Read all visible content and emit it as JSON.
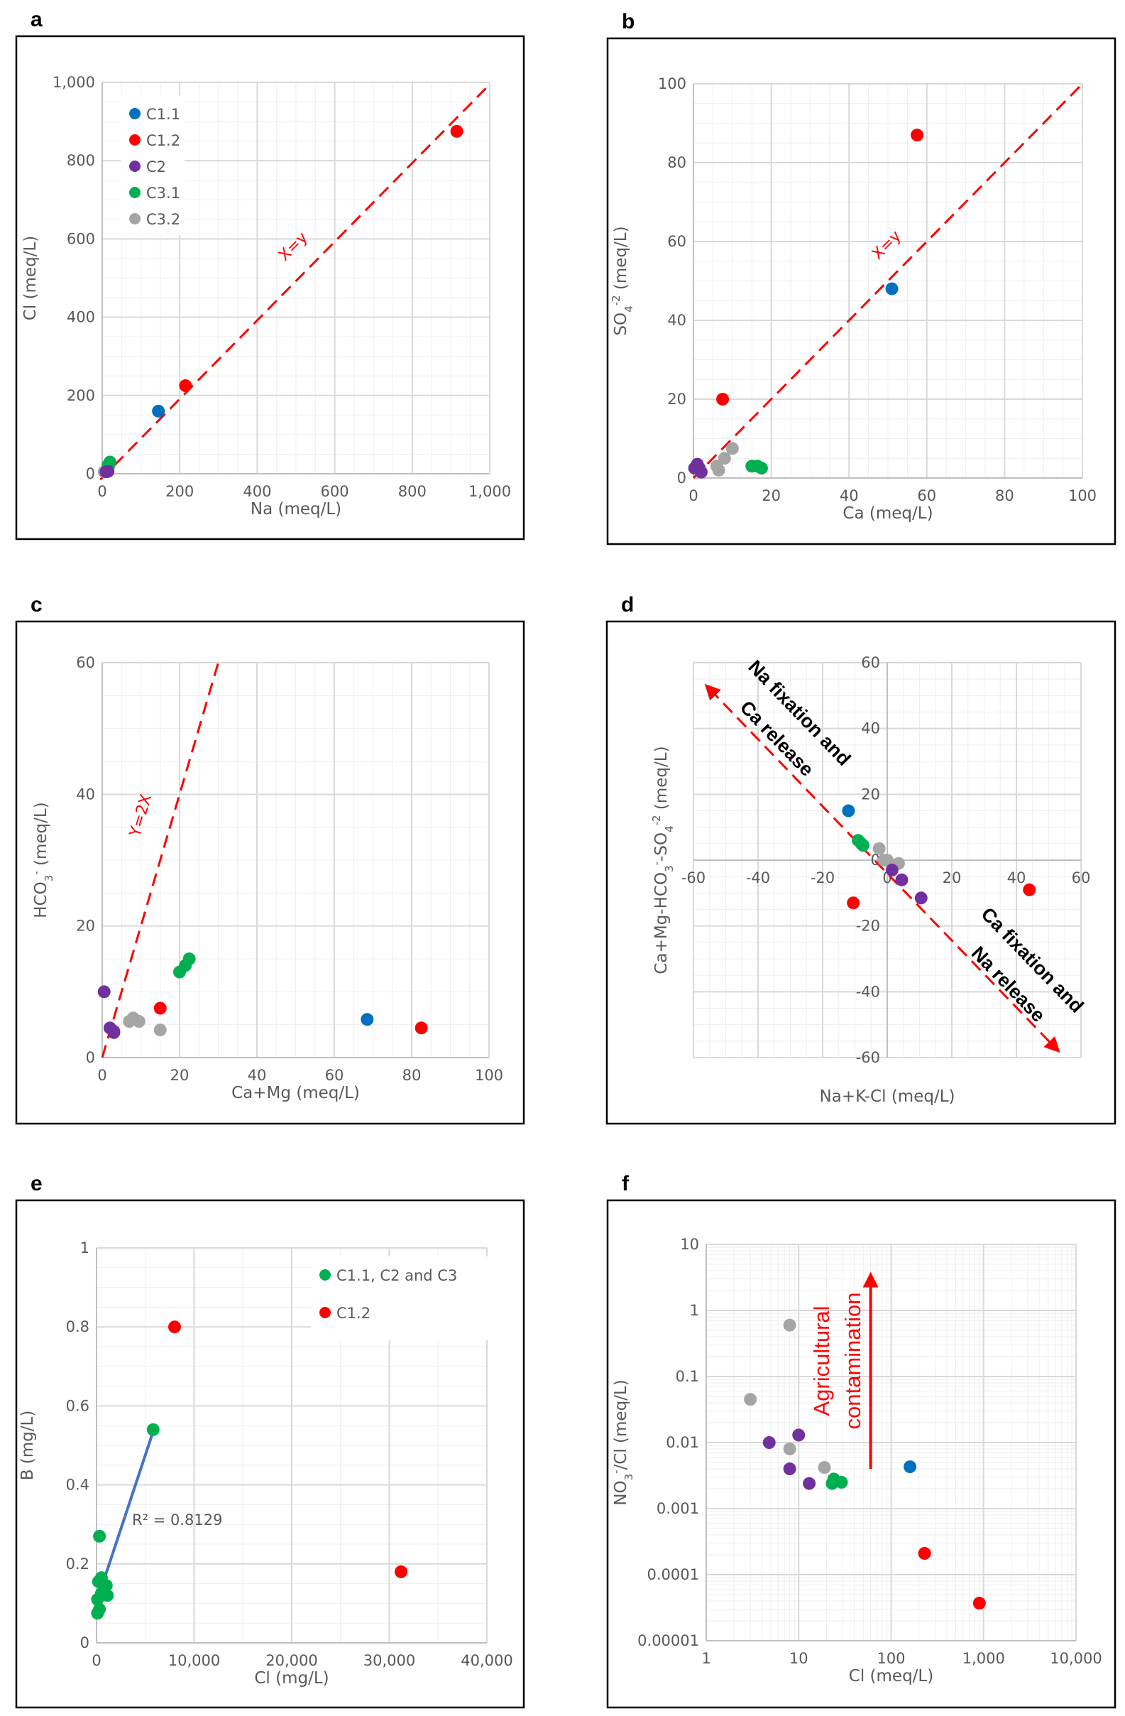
{
  "colors": {
    "C1.1": "#0070C0",
    "C1.2": "#FF0000",
    "C2": "#7030A0",
    "C3.1": "#00B050",
    "C3.2": "#A5A5A5",
    "C1.1, C2 and C3": "#00B050",
    "trend": "#4472C4"
  },
  "chart_data": [
    {
      "label": "a",
      "type": "scatter",
      "xlabel": [
        {
          "t": "Na (meq/L)"
        }
      ],
      "ylabel": [
        {
          "t": "Cl (meq/L)"
        }
      ],
      "xlim": [
        0,
        1000
      ],
      "ylim": [
        0,
        1000
      ],
      "xticks": [
        0,
        200,
        400,
        600,
        800,
        1000
      ],
      "xtick_labels": [
        "0",
        "200",
        "400",
        "600",
        "800",
        "1,000"
      ],
      "yticks": [
        0,
        200,
        400,
        600,
        800,
        1000
      ],
      "ytick_labels": [
        "0",
        "200",
        "400",
        "600",
        "800",
        "1,000"
      ],
      "grid": true,
      "legend": [
        "C1.1",
        "C1.2",
        "C2",
        "C3.1",
        "C3.2"
      ],
      "legend_position": "top-left",
      "series": [
        {
          "name": "C3.2",
          "points": [
            [
              5,
              5
            ],
            [
              18,
              20
            ]
          ]
        },
        {
          "name": "C3.1",
          "points": [
            [
              20,
              30
            ],
            [
              15,
              22
            ]
          ]
        },
        {
          "name": "C2",
          "points": [
            [
              10,
              5
            ],
            [
              15,
              6
            ]
          ]
        },
        {
          "name": "C1.1",
          "points": [
            [
              145,
              160
            ]
          ]
        },
        {
          "name": "C1.2",
          "points": [
            [
              215,
              225
            ],
            [
              915,
              875
            ]
          ]
        }
      ],
      "lines": [
        {
          "label": "X=y",
          "from": [
            -5,
            -15
          ],
          "to": [
            990,
            985
          ],
          "style": "dashed",
          "color": "#FF0000"
        }
      ]
    },
    {
      "label": "b",
      "type": "scatter",
      "xlabel": [
        {
          "t": "Ca (meq/L)"
        }
      ],
      "ylabel": [
        {
          "t": "SO"
        },
        {
          "t": "4",
          "sub": true
        },
        {
          "t": "-2",
          "sup": true
        },
        {
          "t": " (meq/L)"
        }
      ],
      "xlim": [
        0,
        100
      ],
      "ylim": [
        0,
        100
      ],
      "xticks": [
        0,
        20,
        40,
        60,
        80,
        100
      ],
      "xtick_labels": [
        "0",
        "20",
        "40",
        "60",
        "80",
        "100"
      ],
      "yticks": [
        0,
        20,
        40,
        60,
        80,
        100
      ],
      "ytick_labels": [
        "0",
        "20",
        "40",
        "60",
        "80",
        "100"
      ],
      "grid": true,
      "series": [
        {
          "name": "C3.2",
          "points": [
            [
              6,
              3
            ],
            [
              6.5,
              2
            ],
            [
              8,
              5
            ],
            [
              10,
              7.5
            ]
          ]
        },
        {
          "name": "C3.1",
          "points": [
            [
              15,
              3
            ],
            [
              16.5,
              3
            ],
            [
              17.5,
              2.5
            ]
          ]
        },
        {
          "name": "C2",
          "points": [
            [
              0.3,
              2.5
            ],
            [
              1,
              3.5
            ],
            [
              2,
              1.5
            ],
            [
              1.5,
              2.5
            ]
          ]
        },
        {
          "name": "C1.1",
          "points": [
            [
              51,
              48
            ]
          ]
        },
        {
          "name": "C1.2",
          "points": [
            [
              7.5,
              20
            ],
            [
              57.5,
              87
            ]
          ]
        }
      ],
      "lines": [
        {
          "label": "X=y",
          "from": [
            0,
            0
          ],
          "to": [
            100,
            100
          ],
          "style": "dashed",
          "color": "#FF0000"
        }
      ]
    },
    {
      "label": "c",
      "type": "scatter",
      "xlabel": [
        {
          "t": "Ca+Mg (meq/L)"
        }
      ],
      "ylabel": [
        {
          "t": "HCO"
        },
        {
          "t": "3",
          "sub": true
        },
        {
          "t": "-",
          "sup": true
        },
        {
          "t": "  (meq/L)"
        }
      ],
      "xlim": [
        0,
        100
      ],
      "ylim": [
        0,
        60
      ],
      "xticks": [
        0,
        20,
        40,
        60,
        80,
        100
      ],
      "xtick_labels": [
        "0",
        "20",
        "40",
        "60",
        "80",
        "100"
      ],
      "yticks": [
        0,
        20,
        40,
        60
      ],
      "ytick_labels": [
        "0",
        "20",
        "40",
        "60"
      ],
      "grid": true,
      "series": [
        {
          "name": "C2",
          "points": [
            [
              0.5,
              10
            ],
            [
              2,
              4.5
            ],
            [
              3,
              4
            ],
            [
              3,
              3.8
            ]
          ]
        },
        {
          "name": "C3.2",
          "points": [
            [
              7,
              5.5
            ],
            [
              8,
              6
            ],
            [
              9.5,
              5.5
            ],
            [
              15,
              4.2
            ]
          ]
        },
        {
          "name": "C3.1",
          "points": [
            [
              20,
              13
            ],
            [
              21.5,
              14
            ],
            [
              22.5,
              15
            ]
          ]
        },
        {
          "name": "C1.2",
          "points": [
            [
              15,
              7.5
            ],
            [
              82.5,
              4.5
            ]
          ]
        },
        {
          "name": "C1.1",
          "points": [
            [
              68.5,
              5.8
            ]
          ]
        }
      ],
      "lines": [
        {
          "label": "Y=2X",
          "from": [
            0,
            0
          ],
          "to": [
            30,
            60
          ],
          "style": "dashed",
          "color": "#FF0000"
        }
      ]
    },
    {
      "label": "d",
      "type": "scatter",
      "xlabel": [
        {
          "t": "Na+K-Cl (meq/L)"
        }
      ],
      "ylabel": [
        {
          "t": "Ca+Mg-HCO"
        },
        {
          "t": "3",
          "sub": true
        },
        {
          "t": "-",
          "sup": true
        },
        {
          "t": "-SO"
        },
        {
          "t": "4",
          "sub": true
        },
        {
          "t": "-2",
          "sup": true
        },
        {
          "t": " (meq/L)"
        }
      ],
      "xlim": [
        -60,
        60
      ],
      "ylim": [
        -60,
        60
      ],
      "xticks": [
        -60,
        -40,
        -20,
        0,
        20,
        40,
        60
      ],
      "xtick_labels": [
        "-60",
        "-40",
        "-20",
        "0",
        "20",
        "40",
        "60"
      ],
      "yticks": [
        -60,
        -40,
        -20,
        0,
        20,
        40,
        60
      ],
      "ytick_labels": [
        "-60",
        "-40",
        "-20",
        "0",
        "20",
        "40",
        "60"
      ],
      "grid": true,
      "axes_cross_at_zero": true,
      "series": [
        {
          "name": "C3.2",
          "points": [
            [
              -2.5,
              3.5
            ],
            [
              -1,
              0
            ],
            [
              0,
              0
            ],
            [
              3.5,
              -1
            ]
          ]
        },
        {
          "name": "C3.1",
          "points": [
            [
              -9,
              6
            ],
            [
              -8,
              5
            ],
            [
              -7.5,
              4.5
            ]
          ]
        },
        {
          "name": "C2",
          "points": [
            [
              1.5,
              -3
            ],
            [
              4.5,
              -6
            ],
            [
              10.5,
              -11.5
            ]
          ]
        },
        {
          "name": "C1.1",
          "points": [
            [
              -12,
              15
            ]
          ]
        },
        {
          "name": "C1.2",
          "points": [
            [
              -10.5,
              -13
            ],
            [
              44,
              -9
            ]
          ]
        }
      ],
      "lines": [
        {
          "label": "",
          "from": [
            -55,
            52
          ],
          "to": [
            52,
            -57
          ],
          "style": "dashed",
          "color": "#FF0000",
          "arrows": "both"
        }
      ],
      "annotations": [
        "Na fixation and",
        "Ca release",
        "Ca fixation and",
        "Na release"
      ]
    },
    {
      "label": "e",
      "type": "scatter",
      "xlabel": [
        {
          "t": "Cl (mg/L)"
        }
      ],
      "ylabel": [
        {
          "t": "B (mg/L)"
        }
      ],
      "xlim": [
        0,
        40000
      ],
      "ylim": [
        0,
        1
      ],
      "xticks": [
        0,
        10000,
        20000,
        30000,
        40000
      ],
      "xtick_labels": [
        "0",
        "10,000",
        "20,000",
        "30,000",
        "40,000"
      ],
      "yticks": [
        0,
        0.2,
        0.4,
        0.6,
        0.8,
        1
      ],
      "ytick_labels": [
        "0",
        "0.2",
        "0.4",
        "0.6",
        "0.8",
        "1"
      ],
      "grid": true,
      "legend": [
        "C1.1, C2 and C3",
        "C1.2"
      ],
      "legend_position": "top-right",
      "series": [
        {
          "name": "C1.1, C2 and C3",
          "points": [
            [
              5800,
              0.54
            ],
            [
              300,
              0.27
            ],
            [
              200,
              0.155
            ],
            [
              500,
              0.165
            ],
            [
              1000,
              0.145
            ],
            [
              1100,
              0.12
            ],
            [
              100,
              0.11
            ],
            [
              500,
              0.125
            ],
            [
              100,
              0.075
            ],
            [
              300,
              0.085
            ]
          ]
        },
        {
          "name": "C1.2",
          "points": [
            [
              8000,
              0.8
            ],
            [
              31200,
              0.18
            ]
          ]
        }
      ],
      "lines": [
        {
          "label": "",
          "from": [
            100,
            0.11
          ],
          "to": [
            5800,
            0.535
          ],
          "style": "solid",
          "color": "#4472C4"
        }
      ],
      "trendline_r2": "R² = 0.8129"
    },
    {
      "label": "f",
      "type": "scatter",
      "xscale": "log",
      "yscale": "log",
      "xlabel": [
        {
          "t": "Cl (meq/L)"
        }
      ],
      "ylabel": [
        {
          "t": "NO"
        },
        {
          "t": "3",
          "sub": true
        },
        {
          "t": "-",
          "sup": true
        },
        {
          "t": "/Cl (meq/L)"
        }
      ],
      "xlim": [
        1,
        10000
      ],
      "ylim": [
        1e-05,
        10
      ],
      "xticks": [
        1,
        10,
        100,
        1000,
        10000
      ],
      "xtick_labels": [
        "1",
        "10",
        "100",
        "1,000",
        "10,000"
      ],
      "yticks": [
        1e-05,
        0.0001,
        0.001,
        0.01,
        0.1,
        1,
        10
      ],
      "ytick_labels": [
        "0.00001",
        "0.0001",
        "0.001",
        "0.01",
        "0.1",
        "1",
        "10"
      ],
      "grid": true,
      "series": [
        {
          "name": "C3.2",
          "points": [
            [
              8,
              0.6
            ],
            [
              3,
              0.045
            ],
            [
              8,
              0.008
            ],
            [
              19,
              0.0042
            ]
          ]
        },
        {
          "name": "C2",
          "points": [
            [
              4.8,
              0.01
            ],
            [
              10,
              0.013
            ],
            [
              8,
              0.004
            ],
            [
              13,
              0.0024
            ]
          ]
        },
        {
          "name": "C3.1",
          "points": [
            [
              23,
              0.0024
            ],
            [
              24,
              0.0028
            ],
            [
              29,
              0.0025
            ]
          ]
        },
        {
          "name": "C1.1",
          "points": [
            [
              160,
              0.0043
            ]
          ]
        },
        {
          "name": "C1.2",
          "points": [
            [
              230,
              0.00021
            ],
            [
              900,
              3.7e-05
            ]
          ]
        }
      ],
      "lines": [
        {
          "label": "",
          "from": [
            60,
            0.004
          ],
          "to": [
            60,
            3
          ],
          "style": "solid",
          "color": "#FF0000",
          "arrows": "end"
        }
      ],
      "annotations": [
        "Agricultural",
        "contamination"
      ]
    }
  ]
}
